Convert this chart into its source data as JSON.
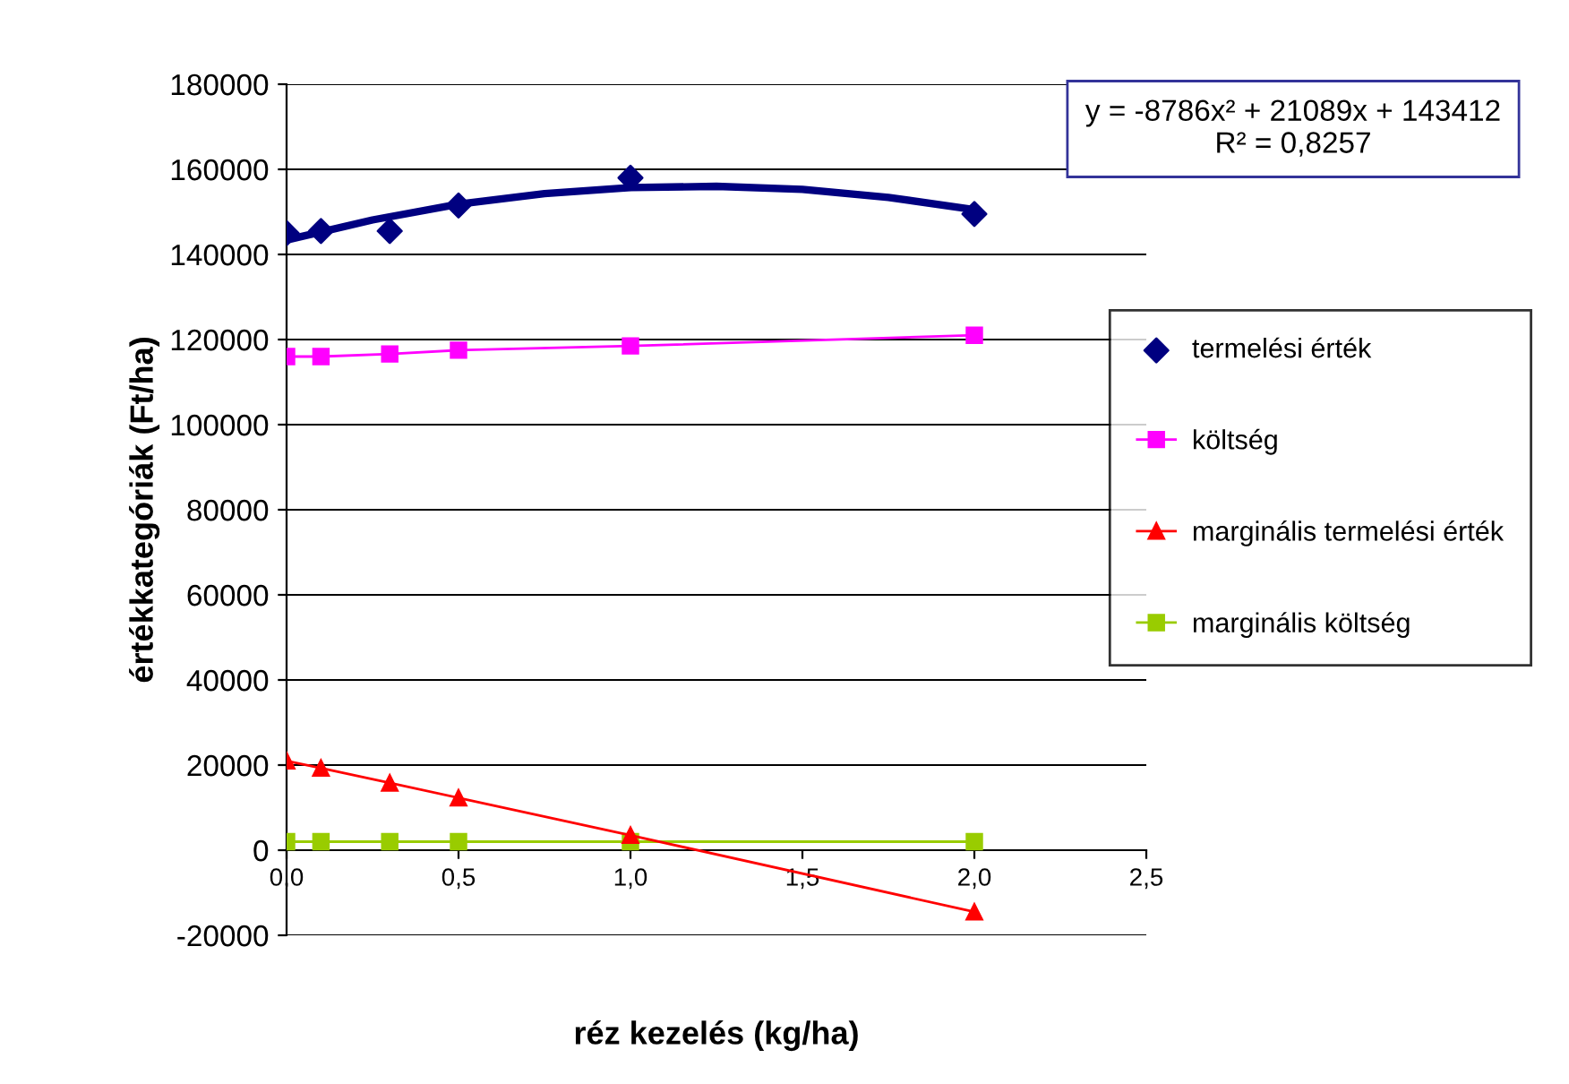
{
  "chart_data": {
    "type": "line",
    "xlabel": "réz kezelés (kg/ha)",
    "ylabel": "értékkategóriák (Ft/ha)",
    "annotations": [
      "y = -8786x² + 21089x + 143412\nR² = 0,8257"
    ],
    "xlim": [
      0,
      2.5
    ],
    "xticks": [
      {
        "value": 0,
        "label": "0,0"
      },
      {
        "value": 0.5,
        "label": "0,5"
      },
      {
        "value": 1,
        "label": "1,0"
      },
      {
        "value": 1.5,
        "label": "1,5"
      },
      {
        "value": 2,
        "label": "2,0"
      },
      {
        "value": 2.5,
        "label": "2,5"
      }
    ],
    "ylim": [
      -20000,
      180000
    ],
    "yticks": [
      -20000,
      0,
      20000,
      40000,
      60000,
      80000,
      100000,
      120000,
      140000,
      160000,
      180000
    ],
    "grid": "y",
    "legend": "right",
    "series": [
      {
        "name": "termelési érték",
        "type": "scatter",
        "marker": "diamond",
        "color": "#000080",
        "x": [
          0,
          0.1,
          0.3,
          0.5,
          1,
          2
        ],
        "values": [
          145000,
          145500,
          145500,
          151500,
          158000,
          149500
        ]
      },
      {
        "type": "line",
        "marker": "none",
        "color": "#000080",
        "x": [
          0,
          0.25,
          0.5,
          0.75,
          1,
          1.25,
          1.5,
          1.75,
          2
        ],
        "values": [
          143400,
          148100,
          151800,
          154300,
          155700,
          156000,
          155300,
          153400,
          150500
        ]
      },
      {
        "name": "költség",
        "type": "line",
        "marker": "square",
        "color": "#ff00ff",
        "x": [
          0,
          0.1,
          0.3,
          0.5,
          1,
          2
        ],
        "values": [
          116000,
          116000,
          116600,
          117500,
          118500,
          121000
        ]
      },
      {
        "name": "marginális termelési érték",
        "type": "line",
        "marker": "triangle",
        "color": "#ff0000",
        "x": [
          0,
          0.1,
          0.3,
          0.5,
          1,
          2
        ],
        "values": [
          21000,
          19300,
          15800,
          12300,
          3500,
          -14500
        ]
      },
      {
        "name": "marginális költség",
        "type": "line",
        "marker": "square",
        "color": "#99cc00",
        "x": [
          0,
          0.1,
          0.3,
          0.5,
          1,
          2
        ],
        "values": [
          2000,
          2000,
          2000,
          2000,
          2000,
          2000
        ]
      }
    ]
  }
}
